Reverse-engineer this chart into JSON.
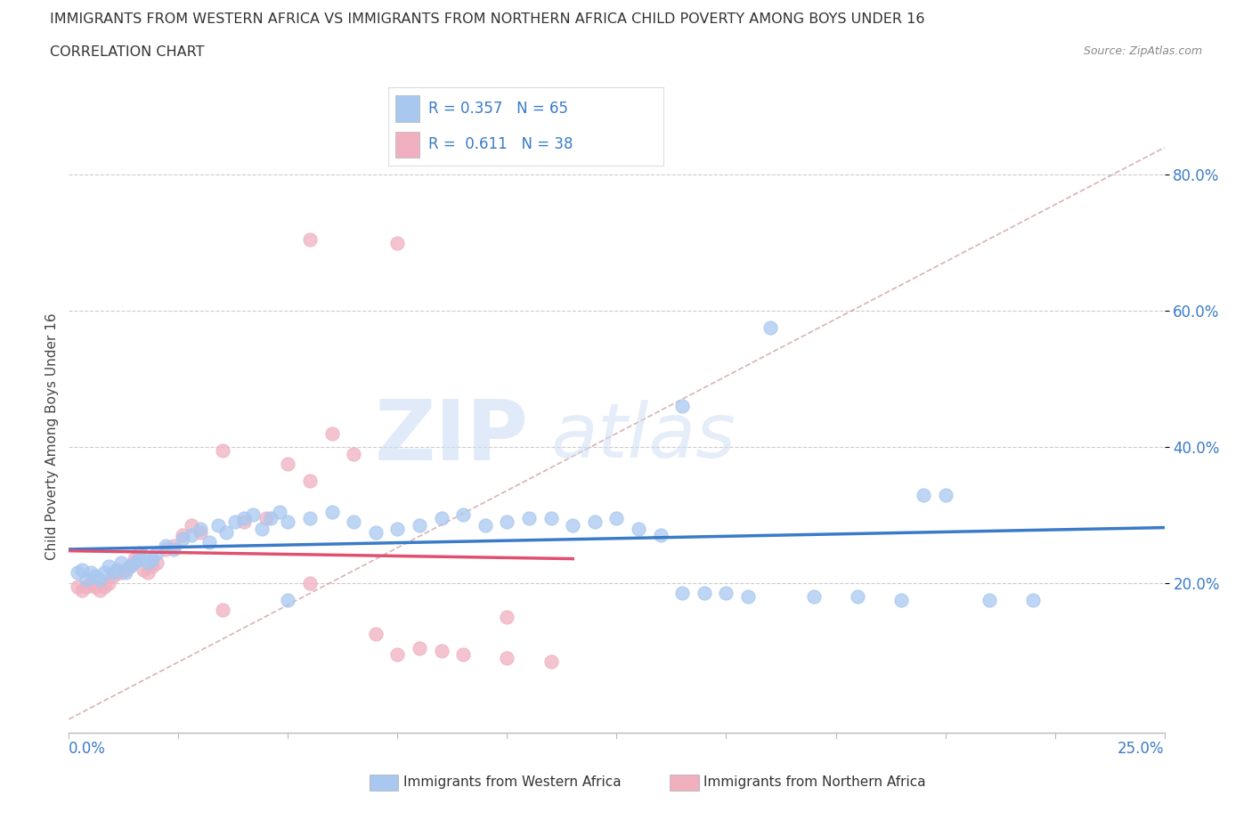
{
  "title_line1": "IMMIGRANTS FROM WESTERN AFRICA VS IMMIGRANTS FROM NORTHERN AFRICA CHILD POVERTY AMONG BOYS UNDER 16",
  "title_line2": "CORRELATION CHART",
  "source_text": "Source: ZipAtlas.com",
  "ylabel": "Child Poverty Among Boys Under 16",
  "xlim": [
    0.0,
    0.25
  ],
  "ylim": [
    -0.02,
    0.85
  ],
  "grid_color": "#cccccc",
  "blue_color": "#a8c8f0",
  "pink_color": "#f0b0c0",
  "blue_line_color": "#3a7bc8",
  "pink_line_color": "#e05070",
  "diag_line_color": "#d0a0a0",
  "R_blue": 0.357,
  "N_blue": 65,
  "R_pink": 0.611,
  "N_pink": 38,
  "legend_label_blue": "Immigrants from Western Africa",
  "legend_label_pink": "Immigrants from Northern Africa",
  "background_color": "#ffffff",
  "blue_scatter_x": [
    0.002,
    0.003,
    0.004,
    0.005,
    0.006,
    0.007,
    0.008,
    0.009,
    0.01,
    0.011,
    0.012,
    0.013,
    0.014,
    0.015,
    0.016,
    0.017,
    0.018,
    0.019,
    0.02,
    0.022,
    0.024,
    0.026,
    0.028,
    0.03,
    0.032,
    0.034,
    0.036,
    0.038,
    0.04,
    0.042,
    0.044,
    0.046,
    0.048,
    0.05,
    0.055,
    0.06,
    0.065,
    0.07,
    0.075,
    0.08,
    0.085,
    0.09,
    0.095,
    0.1,
    0.105,
    0.11,
    0.115,
    0.12,
    0.125,
    0.13,
    0.135,
    0.14,
    0.145,
    0.15,
    0.155,
    0.16,
    0.17,
    0.18,
    0.19,
    0.2,
    0.21,
    0.22,
    0.14,
    0.195,
    0.05
  ],
  "blue_scatter_y": [
    0.215,
    0.22,
    0.205,
    0.215,
    0.21,
    0.205,
    0.215,
    0.225,
    0.215,
    0.22,
    0.23,
    0.215,
    0.225,
    0.23,
    0.235,
    0.24,
    0.23,
    0.235,
    0.245,
    0.255,
    0.25,
    0.265,
    0.27,
    0.28,
    0.26,
    0.285,
    0.275,
    0.29,
    0.295,
    0.3,
    0.28,
    0.295,
    0.305,
    0.29,
    0.295,
    0.305,
    0.29,
    0.275,
    0.28,
    0.285,
    0.295,
    0.3,
    0.285,
    0.29,
    0.295,
    0.295,
    0.285,
    0.29,
    0.295,
    0.28,
    0.27,
    0.185,
    0.185,
    0.185,
    0.18,
    0.575,
    0.18,
    0.18,
    0.175,
    0.33,
    0.175,
    0.175,
    0.46,
    0.33,
    0.175
  ],
  "pink_scatter_x": [
    0.002,
    0.003,
    0.004,
    0.005,
    0.006,
    0.007,
    0.008,
    0.009,
    0.01,
    0.011,
    0.012,
    0.013,
    0.014,
    0.015,
    0.016,
    0.017,
    0.018,
    0.019,
    0.02,
    0.022,
    0.024,
    0.026,
    0.028,
    0.03,
    0.035,
    0.04,
    0.045,
    0.05,
    0.055,
    0.06,
    0.065,
    0.07,
    0.075,
    0.08,
    0.085,
    0.09,
    0.1,
    0.11
  ],
  "pink_scatter_y": [
    0.195,
    0.19,
    0.195,
    0.2,
    0.195,
    0.19,
    0.195,
    0.2,
    0.21,
    0.215,
    0.215,
    0.22,
    0.225,
    0.235,
    0.245,
    0.22,
    0.215,
    0.225,
    0.23,
    0.25,
    0.255,
    0.27,
    0.285,
    0.275,
    0.395,
    0.29,
    0.295,
    0.375,
    0.35,
    0.42,
    0.39,
    0.125,
    0.095,
    0.105,
    0.1,
    0.095,
    0.09,
    0.085
  ]
}
